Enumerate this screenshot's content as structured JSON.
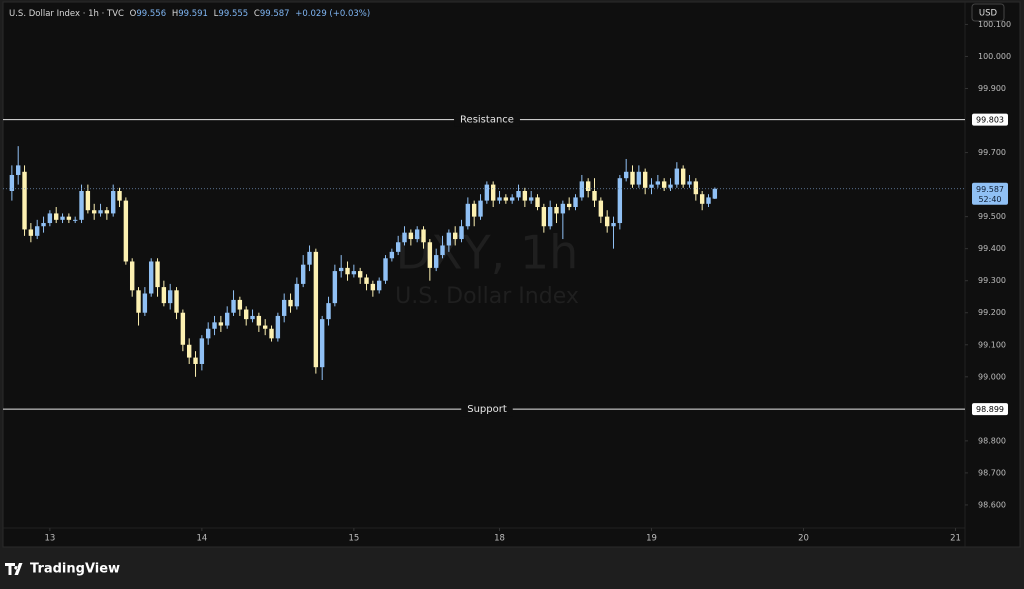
{
  "chart_data": {
    "type": "candlestick",
    "legend": {
      "name": "U.S. Dollar Index · 1h · TVC",
      "open_label": "O",
      "open": 99.556,
      "high_label": "H",
      "high": 99.591,
      "low_label": "L",
      "low": 99.555,
      "close_label": "C",
      "close": 99.587,
      "change": "+0.029 (+0.03%)"
    },
    "watermark": [
      "DXY, 1h",
      "U.S. Dollar Index"
    ],
    "currency": "USD",
    "up_color": "#90c0f4",
    "down_color": "#fdf1b2",
    "x": [
      1,
      2,
      3,
      4,
      5,
      6,
      7,
      8,
      9,
      10,
      11,
      12,
      13,
      14,
      15,
      16,
      17,
      18,
      19,
      20,
      21,
      22,
      23,
      24,
      25,
      26,
      27,
      28,
      29,
      30,
      31,
      32,
      33,
      34,
      35,
      36,
      37,
      38,
      39,
      40,
      41,
      42,
      43,
      44,
      45,
      46,
      47,
      48,
      49,
      50,
      51,
      52,
      53,
      54,
      55,
      56,
      57,
      58,
      59,
      60,
      61,
      62,
      63,
      64,
      65,
      66,
      67,
      68,
      69,
      70,
      71,
      72,
      73,
      74,
      75,
      76,
      77,
      78,
      79,
      80,
      81,
      82,
      83,
      84,
      85,
      86,
      87,
      88,
      89,
      90,
      91,
      92,
      93,
      94,
      95,
      96,
      97,
      98,
      99,
      100,
      101,
      102,
      103,
      104,
      105,
      106,
      107,
      108,
      109,
      110,
      111,
      112
    ],
    "open": [
      99.58,
      99.63,
      99.64,
      99.46,
      99.44,
      99.47,
      99.48,
      99.51,
      99.49,
      99.5,
      99.49,
      99.49,
      99.58,
      99.52,
      99.51,
      99.52,
      99.51,
      99.58,
      99.55,
      99.36,
      99.27,
      99.2,
      99.26,
      99.36,
      99.28,
      99.23,
      99.27,
      99.2,
      99.1,
      99.06,
      99.04,
      99.12,
      99.15,
      99.17,
      99.16,
      99.2,
      99.24,
      99.21,
      99.18,
      99.19,
      99.16,
      99.15,
      99.12,
      99.19,
      99.24,
      99.22,
      99.29,
      99.35,
      99.39,
      99.03,
      99.18,
      99.23,
      99.33,
      99.34,
      99.32,
      99.33,
      99.31,
      99.29,
      99.27,
      99.3,
      99.37,
      99.39,
      99.42,
      99.45,
      99.43,
      99.46,
      99.42,
      99.34,
      99.38,
      99.41,
      99.45,
      99.43,
      99.47,
      99.54,
      99.5,
      99.55,
      99.6,
      99.55,
      99.56,
      99.55,
      99.56,
      99.58,
      99.55,
      99.56,
      99.53,
      99.47,
      99.53,
      99.51,
      99.54,
      99.53,
      99.56,
      99.61,
      99.58,
      99.55,
      99.5,
      99.47,
      99.48,
      99.62,
      99.64,
      99.6,
      99.64,
      99.59,
      99.6,
      99.61,
      99.59,
      99.6,
      99.65,
      99.6,
      99.61,
      99.57,
      99.54,
      99.556
    ],
    "high": [
      99.66,
      99.72,
      99.66,
      99.48,
      99.49,
      99.5,
      99.52,
      99.53,
      99.51,
      99.51,
      99.5,
      99.6,
      99.6,
      99.54,
      99.54,
      99.53,
      99.6,
      99.59,
      99.56,
      99.37,
      99.28,
      99.28,
      99.37,
      99.37,
      99.3,
      99.29,
      99.28,
      99.21,
      99.12,
      99.08,
      99.13,
      99.17,
      99.19,
      99.19,
      99.22,
      99.27,
      99.25,
      99.22,
      99.21,
      99.2,
      99.18,
      99.16,
      99.2,
      99.26,
      99.26,
      99.31,
      99.38,
      99.41,
      99.4,
      99.19,
      99.25,
      99.35,
      99.38,
      99.36,
      99.35,
      99.34,
      99.32,
      99.3,
      99.31,
      99.38,
      99.4,
      99.44,
      99.47,
      99.46,
      99.47,
      99.47,
      99.43,
      99.4,
      99.44,
      99.46,
      99.47,
      99.49,
      99.56,
      99.55,
      99.57,
      99.61,
      99.61,
      99.58,
      99.57,
      99.57,
      99.6,
      99.59,
      99.58,
      99.57,
      99.54,
      99.55,
      99.54,
      99.55,
      99.56,
      99.57,
      99.63,
      99.62,
      99.62,
      99.56,
      99.52,
      99.5,
      99.63,
      99.68,
      99.66,
      99.66,
      99.65,
      99.62,
      99.63,
      99.62,
      99.62,
      99.67,
      99.66,
      99.63,
      99.62,
      99.58,
      99.57,
      99.591
    ],
    "low": [
      99.55,
      99.6,
      99.44,
      99.42,
      99.43,
      99.45,
      99.47,
      99.48,
      99.48,
      99.48,
      99.48,
      99.48,
      99.51,
      99.49,
      99.5,
      99.49,
      99.5,
      99.53,
      99.35,
      99.25,
      99.16,
      99.19,
      99.25,
      99.25,
      99.22,
      99.21,
      99.18,
      99.08,
      99.04,
      99.0,
      99.02,
      99.1,
      99.13,
      99.14,
      99.15,
      99.19,
      99.19,
      99.16,
      99.17,
      99.14,
      99.13,
      99.11,
      99.11,
      99.17,
      99.2,
      99.21,
      99.28,
      99.33,
      99.01,
      98.99,
      99.16,
      99.22,
      99.31,
      99.3,
      99.31,
      99.29,
      99.27,
      99.25,
      99.26,
      99.29,
      99.36,
      99.38,
      99.41,
      99.41,
      99.42,
      99.4,
      99.3,
      99.33,
      99.37,
      99.39,
      99.41,
      99.42,
      99.46,
      99.47,
      99.49,
      99.54,
      99.53,
      99.54,
      99.54,
      99.54,
      99.55,
      99.53,
      99.54,
      99.52,
      99.45,
      99.46,
      99.48,
      99.43,
      99.52,
      99.52,
      99.55,
      99.56,
      99.53,
      99.48,
      99.45,
      99.4,
      99.46,
      99.61,
      99.59,
      99.59,
      99.57,
      99.57,
      99.59,
      99.58,
      99.58,
      99.59,
      99.59,
      99.59,
      99.55,
      99.52,
      99.53,
      99.555
    ],
    "close": [
      99.63,
      99.66,
      99.46,
      99.44,
      99.47,
      99.48,
      99.51,
      99.49,
      99.5,
      99.49,
      99.49,
      99.58,
      99.52,
      99.51,
      99.52,
      99.51,
      99.58,
      99.55,
      99.36,
      99.27,
      99.2,
      99.26,
      99.36,
      99.28,
      99.23,
      99.27,
      99.2,
      99.1,
      99.06,
      99.04,
      99.12,
      99.15,
      99.17,
      99.16,
      99.2,
      99.24,
      99.21,
      99.18,
      99.19,
      99.16,
      99.15,
      99.12,
      99.19,
      99.24,
      99.22,
      99.29,
      99.35,
      99.39,
      99.03,
      99.18,
      99.23,
      99.33,
      99.34,
      99.32,
      99.33,
      99.31,
      99.29,
      99.27,
      99.3,
      99.37,
      99.39,
      99.42,
      99.45,
      99.43,
      99.46,
      99.42,
      99.34,
      99.38,
      99.41,
      99.45,
      99.43,
      99.47,
      99.54,
      99.5,
      99.55,
      99.6,
      99.55,
      99.56,
      99.55,
      99.56,
      99.58,
      99.55,
      99.56,
      99.53,
      99.47,
      99.53,
      99.51,
      99.54,
      99.53,
      99.56,
      99.61,
      99.58,
      99.55,
      99.5,
      99.47,
      99.48,
      99.62,
      99.64,
      99.6,
      99.64,
      99.59,
      99.6,
      99.61,
      99.59,
      99.6,
      99.65,
      99.6,
      99.61,
      99.57,
      99.54,
      99.56,
      99.587
    ],
    "xlim": [
      -0.4,
      151.5
    ],
    "xticks": [
      {
        "value": 7,
        "label": "13"
      },
      {
        "value": 31,
        "label": "14"
      },
      {
        "value": 55,
        "label": "15"
      },
      {
        "value": 78,
        "label": "18"
      },
      {
        "value": 102,
        "label": "19"
      },
      {
        "value": 126,
        "label": "20"
      },
      {
        "value": 150,
        "label": "21"
      }
    ],
    "ylim": [
      98.528,
      100.17
    ],
    "yticks": [
      {
        "value": 98.6,
        "label": "98.600"
      },
      {
        "value": 98.7,
        "label": "98.700"
      },
      {
        "value": 98.8,
        "label": "98.800"
      },
      {
        "value": 99.0,
        "label": "99.000"
      },
      {
        "value": 99.1,
        "label": "99.100"
      },
      {
        "value": 99.2,
        "label": "99.200"
      },
      {
        "value": 99.3,
        "label": "99.300"
      },
      {
        "value": 99.4,
        "label": "99.400"
      },
      {
        "value": 99.5,
        "label": "99.500"
      },
      {
        "value": 99.7,
        "label": "99.700"
      },
      {
        "value": 99.9,
        "label": "99.900"
      },
      {
        "value": 100.0,
        "label": "100.000"
      },
      {
        "value": 100.1,
        "label": "100.100"
      }
    ],
    "levels": [
      {
        "label": "Resistance",
        "value": 99.803
      },
      {
        "label": "Support",
        "value": 98.899
      }
    ],
    "last_price": 99.587,
    "countdown": "52:40"
  },
  "brand": "TradingView"
}
